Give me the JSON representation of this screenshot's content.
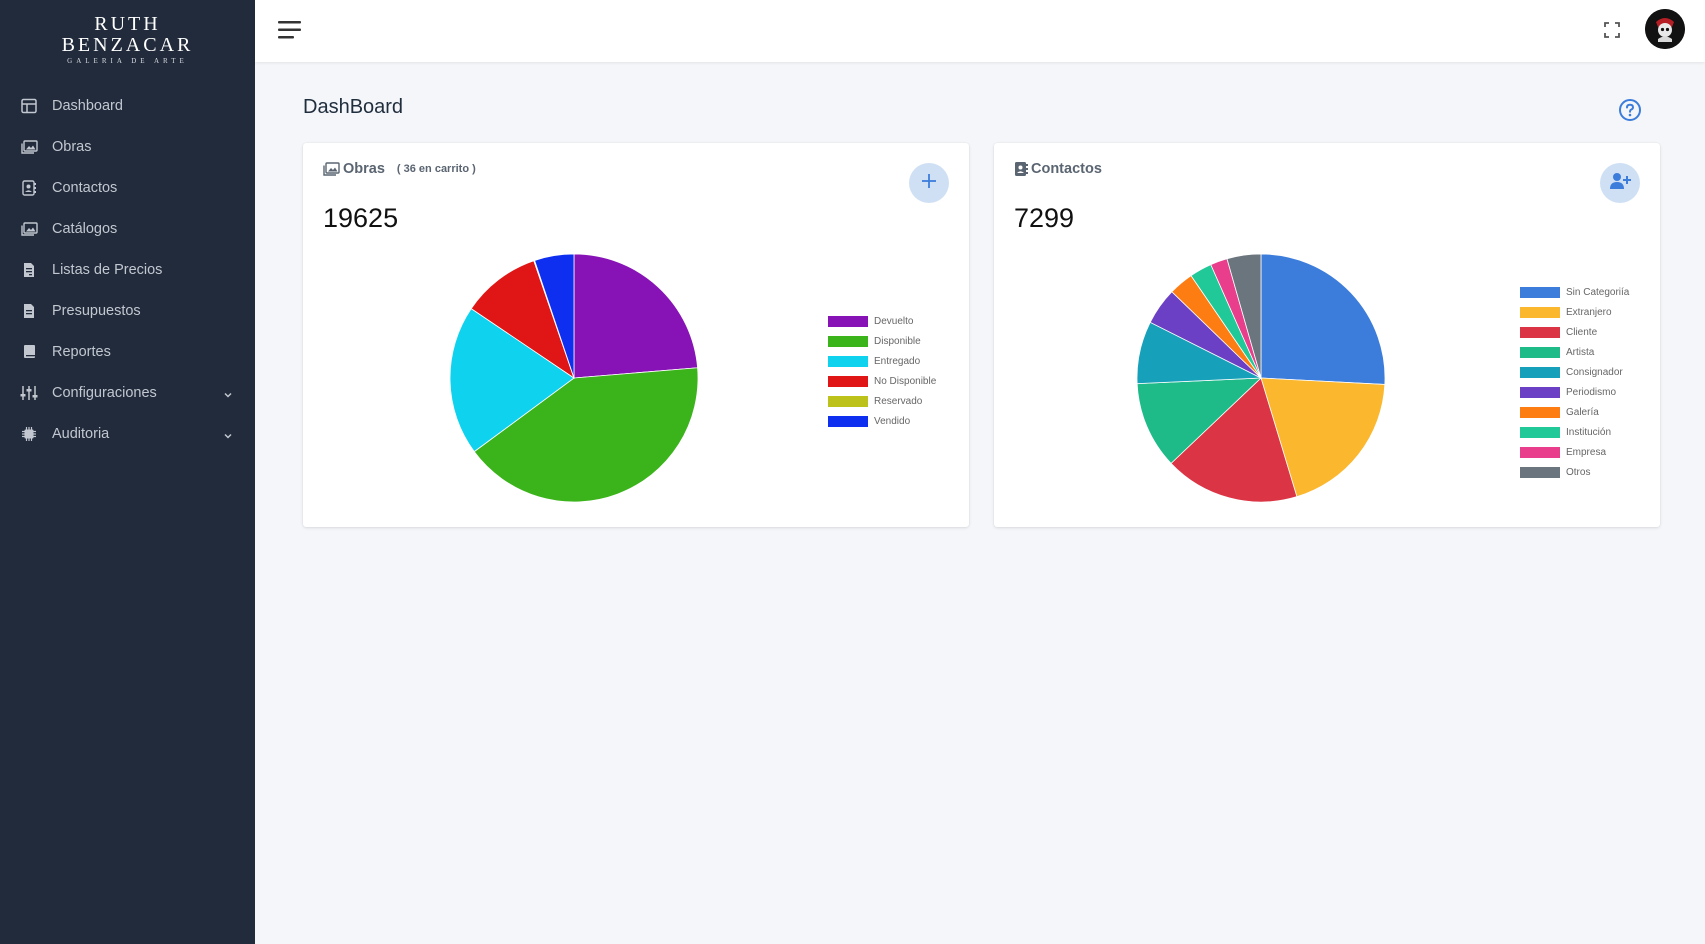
{
  "brand": {
    "line1": "RUTH",
    "line2": "BENZACAR",
    "tagline": "GALERIA DE ARTE"
  },
  "sidebar": {
    "items": [
      {
        "label": "Dashboard",
        "icon": "table-icon"
      },
      {
        "label": "Obras",
        "icon": "images-icon"
      },
      {
        "label": "Contactos",
        "icon": "address-book-icon"
      },
      {
        "label": "Catálogos",
        "icon": "images-icon"
      },
      {
        "label": "Listas de Precios",
        "icon": "file-invoice-icon"
      },
      {
        "label": "Presupuestos",
        "icon": "file-text-icon"
      },
      {
        "label": "Reportes",
        "icon": "book-icon"
      },
      {
        "label": "Configuraciones",
        "icon": "sliders-icon"
      },
      {
        "label": "Auditoria",
        "icon": "chip-icon"
      }
    ]
  },
  "page": {
    "title": "DashBoard"
  },
  "obras": {
    "title": "Obras",
    "subtitle": "( 36 en carrito )",
    "count": "19625"
  },
  "contactos": {
    "title": "Contactos",
    "count": "7299"
  },
  "chart_data": [
    {
      "type": "pie",
      "categories": [
        "Devuelto",
        "Disponible",
        "Entregado",
        "No Disponible",
        "Reservado",
        "Vendido"
      ],
      "values": [
        23,
        40,
        19,
        10,
        0.1,
        5
      ],
      "colors": [
        "#8712b5",
        "#3bb31b",
        "#0fd3ee",
        "#e01515",
        "#bdc21a",
        "#0f2ff0"
      ],
      "legend_position": "right"
    },
    {
      "type": "pie",
      "categories": [
        "Sin Categoriía",
        "Extranjero",
        "Cliente",
        "Artista",
        "Consignador",
        "Periodismo",
        "Galería",
        "Institución",
        "Empresa",
        "Otros"
      ],
      "values": [
        25.7,
        19.4,
        17.5,
        11.3,
        8.1,
        4.8,
        3.2,
        2.9,
        2.2,
        4.4
      ],
      "colors": [
        "#3c7ddb",
        "#fbb72d",
        "#db3545",
        "#1ebb89",
        "#17a0b9",
        "#6b40c5",
        "#fd7d13",
        "#20c997",
        "#e83e8c",
        "#6b757d"
      ],
      "legend_position": "right"
    }
  ]
}
